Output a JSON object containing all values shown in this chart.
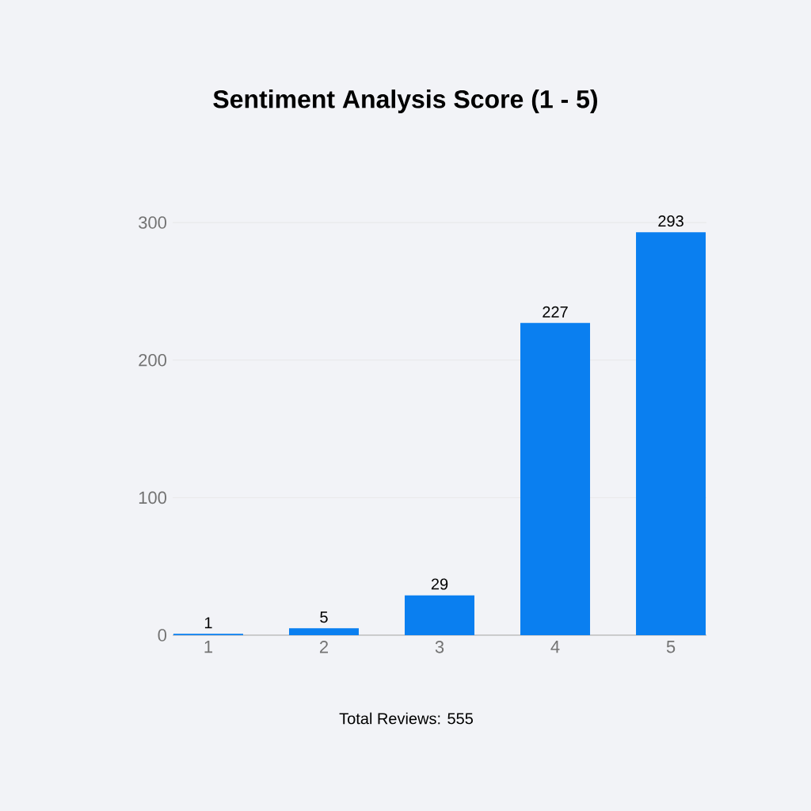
{
  "chart_data": {
    "type": "bar",
    "title": "Sentiment Analysis Score (1 - 5)",
    "categories": [
      "1",
      "2",
      "3",
      "4",
      "5"
    ],
    "values": [
      1,
      5,
      29,
      227,
      293
    ],
    "color": "#0a7ff0",
    "ylim": [
      0,
      300
    ],
    "yticks": [
      0,
      100,
      200,
      300
    ],
    "grid": "y",
    "data_labels": true,
    "annotations": [
      "Total Reviews: 555"
    ]
  }
}
